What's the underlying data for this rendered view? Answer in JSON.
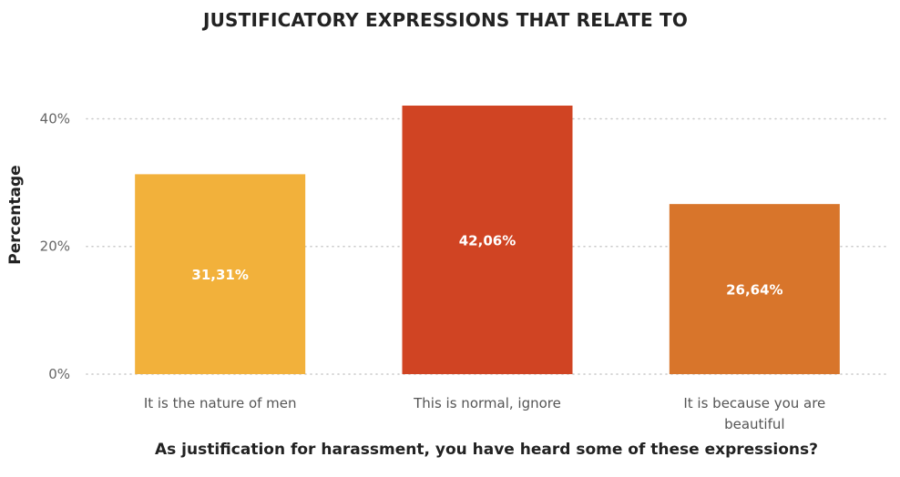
{
  "chart_data": {
    "type": "bar",
    "title": "JUSTIFICATORY EXPRESSIONS THAT RELATE TO",
    "xlabel": "As justification for harassment, you have heard some of these expressions?",
    "ylabel": "Percentage",
    "categories": [
      "It is the nature of men",
      "This is normal, ignore",
      "It is because you are beautiful"
    ],
    "values": [
      31.31,
      42.06,
      26.64
    ],
    "data_labels": [
      "31,31%",
      "42,06%",
      "26,64%"
    ],
    "colors": [
      "#F2B13B",
      "#D04423",
      "#D8752B"
    ],
    "yticks": [
      {
        "value": 0,
        "label": "0%"
      },
      {
        "value": 20,
        "label": "20%"
      },
      {
        "value": 40,
        "label": "40%"
      }
    ],
    "ylim": [
      0,
      42.06
    ],
    "grid": true,
    "legend": "none"
  }
}
